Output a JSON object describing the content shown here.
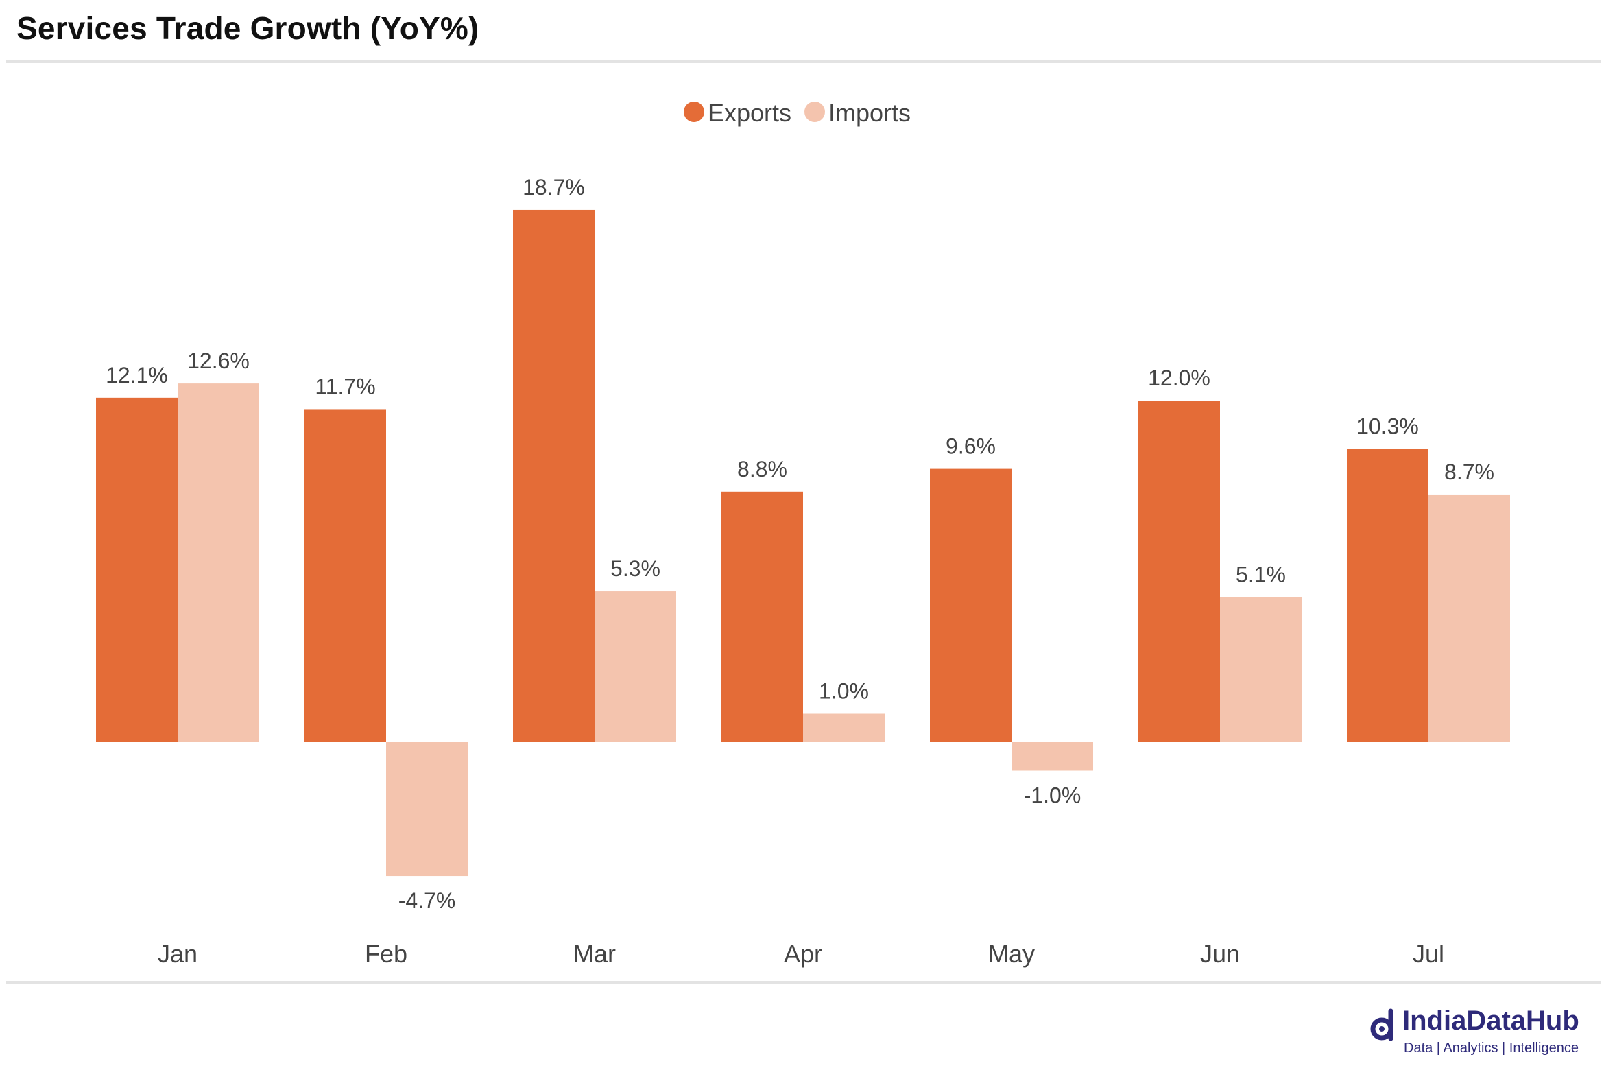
{
  "title": "Services Trade Growth (YoY%)",
  "colors": {
    "exports": "#e46c37",
    "imports": "#f4c4ae",
    "label": "#444444",
    "axis_text": "#444444"
  },
  "brand": {
    "name": "IndiaDataHub",
    "tagline": "Data | Analytics | Intelligence",
    "icon": "magnifier-logo-icon"
  },
  "chart_data": {
    "type": "bar",
    "title": "Services Trade Growth (YoY%)",
    "categories": [
      "Jan",
      "Feb",
      "Mar",
      "Apr",
      "May",
      "Jun",
      "Jul"
    ],
    "series": [
      {
        "name": "Exports",
        "values": [
          12.1,
          11.7,
          18.7,
          8.8,
          9.6,
          12.0,
          10.3
        ],
        "labels": [
          "12.1%",
          "11.7%",
          "18.7%",
          "8.8%",
          "9.6%",
          "12.0%",
          "10.3%"
        ]
      },
      {
        "name": "Imports",
        "values": [
          12.6,
          -4.7,
          5.3,
          1.0,
          -1.0,
          5.1,
          8.7
        ],
        "labels": [
          "12.6%",
          "-4.7%",
          "5.3%",
          "1.0%",
          "-1.0%",
          "5.1%",
          "8.7%"
        ]
      }
    ],
    "xlabel": "",
    "ylabel": "",
    "ylim": [
      -6.4,
      22.4
    ],
    "grid": false,
    "legend": "top-center"
  }
}
